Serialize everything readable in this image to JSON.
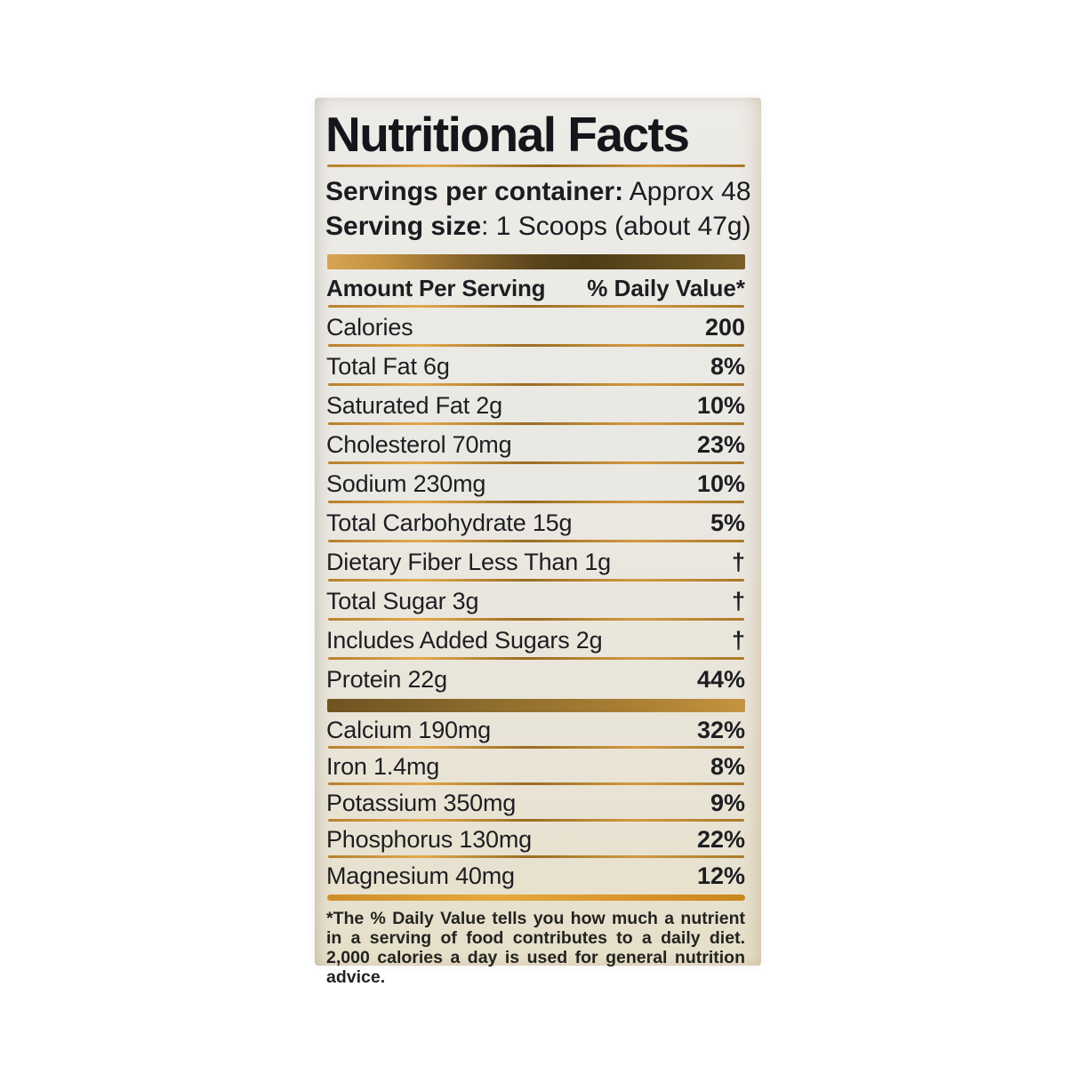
{
  "label": {
    "title": "Nutritional Facts",
    "servings": [
      {
        "label": "Servings per container:",
        "value": " Approx 48"
      },
      {
        "label": "Serving size",
        "value": ": 1 Scoops (about 47g)"
      }
    ],
    "table_header": {
      "left": "Amount Per Serving",
      "right": "% Daily Value*"
    },
    "rows": [
      {
        "name": "Calories",
        "value": "200"
      },
      {
        "name": "Total Fat 6g",
        "value": "8%"
      },
      {
        "name": "Saturated Fat 2g",
        "value": "10%"
      },
      {
        "name": "Cholesterol 70mg",
        "value": "23%"
      },
      {
        "name": "Sodium 230mg",
        "value": "10%"
      },
      {
        "name": "Total Carbohydrate 15g",
        "value": "5%"
      },
      {
        "name": "Dietary Fiber Less Than 1g",
        "value": "†"
      },
      {
        "name": "Total Sugar 3g",
        "value": "†"
      },
      {
        "name": "Includes Added Sugars 2g",
        "value": "†"
      },
      {
        "name": "Protein 22g",
        "value": "44%"
      }
    ],
    "minerals": [
      {
        "name": "Calcium 190mg",
        "value": "32%"
      },
      {
        "name": "Iron 1.4mg",
        "value": "8%"
      },
      {
        "name": "Potassium 350mg",
        "value": "9%"
      },
      {
        "name": "Phosphorus 130mg",
        "value": "22%"
      },
      {
        "name": "Magnesium 40mg",
        "value": "12%"
      }
    ],
    "footnote": "*The % Daily Value tells you how much a nutrient in a serving of food contributes to a daily diet. 2,000 calories a day is used for general nutrition advice.",
    "colors": {
      "gold_light": "#d9a455",
      "gold_dark": "#4e3c16",
      "thin_rule_gold": "#d29a42",
      "orange_rule": "#d79328",
      "label_bg_top": "#edebe7",
      "label_bg_bottom": "#e6dfc9",
      "text": "#1b1b20"
    }
  }
}
